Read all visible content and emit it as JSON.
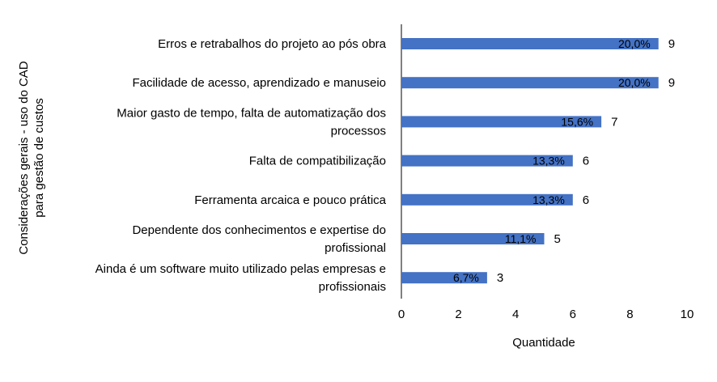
{
  "chart_data": {
    "type": "bar",
    "orientation": "horizontal",
    "categories": [
      "Erros e retrabalhos do projeto ao pós obra",
      "Facilidade de acesso, aprendizado e manuseio",
      "Maior gasto de tempo, falta de automatização dos processos",
      "Falta de compatibilização",
      "Ferramenta arcaica e pouco prática",
      "Dependente dos conhecimentos e expertise do profissional",
      "Ainda é um software muito utilizado pelas empresas e profissionais"
    ],
    "category_lines": [
      [
        "Erros e retrabalhos do projeto ao pós obra"
      ],
      [
        "Facilidade de acesso, aprendizado e manuseio"
      ],
      [
        "Maior gasto de tempo, falta de automatização dos",
        "processos"
      ],
      [
        "Falta de compatibilização"
      ],
      [
        "Ferramenta arcaica e pouco prática"
      ],
      [
        "Dependente dos conhecimentos e expertise do",
        "profissional"
      ],
      [
        "Ainda é um software muito utilizado pelas empresas e",
        "profissionais"
      ]
    ],
    "values": [
      9,
      9,
      7,
      6,
      6,
      5,
      3
    ],
    "percent_labels": [
      "20,0%",
      "20,0%",
      "15,6%",
      "13,3%",
      "13,3%",
      "11,1%",
      "6,7%"
    ],
    "xlabel": "Quantidade",
    "ylabel_lines": [
      "Considerações gerais - uso do CAD",
      "para gestão de custos"
    ],
    "xlim": [
      0,
      10
    ],
    "xticks": [
      0,
      2,
      4,
      6,
      8,
      10
    ],
    "grid": false,
    "legend": "none",
    "bar_color": "#4472C4"
  }
}
